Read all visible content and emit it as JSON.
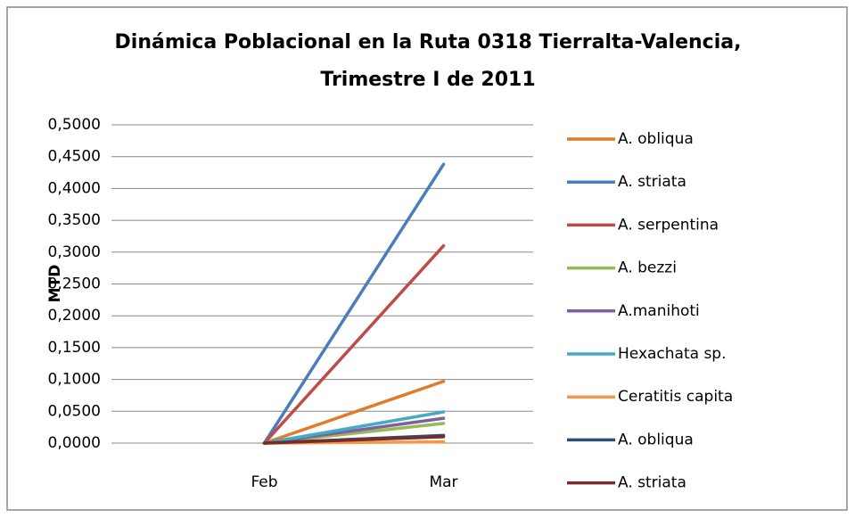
{
  "chart_data": {
    "type": "line",
    "title": [
      "Dinámica Poblacional  en la Ruta 0318 Tierralta-Valencia,",
      "Trimestre I de 2011"
    ],
    "ylabel": "MTD",
    "categories": [
      "Feb",
      "Mar"
    ],
    "ylim": [
      0,
      0.5
    ],
    "yticks": [
      {
        "value": 0,
        "label": "0,0000"
      },
      {
        "value": 0.05,
        "label": "0,0500"
      },
      {
        "value": 0.1,
        "label": "0,1000"
      },
      {
        "value": 0.15,
        "label": "0,1500"
      },
      {
        "value": 0.2,
        "label": "0,2000"
      },
      {
        "value": 0.25,
        "label": "0,2500"
      },
      {
        "value": 0.3,
        "label": "0,3000"
      },
      {
        "value": 0.35,
        "label": "0,3500"
      },
      {
        "value": 0.4,
        "label": "0,4000"
      },
      {
        "value": 0.45,
        "label": "0,4500"
      },
      {
        "value": 0.5,
        "label": "0,5000"
      }
    ],
    "grid": true,
    "legend": "right",
    "series": [
      {
        "name": "A. obliqua",
        "color": "#e07b2a",
        "values": [
          0,
          0.097
        ]
      },
      {
        "name": "A. striata",
        "color": "#4a7ebb",
        "values": [
          0,
          0.438
        ]
      },
      {
        "name": "A. serpentina",
        "color": "#be4b48",
        "values": [
          0,
          0.31
        ]
      },
      {
        "name": "A. bezzi",
        "color": "#98b954",
        "values": [
          0,
          0.031
        ]
      },
      {
        "name": "A.manihoti",
        "color": "#7d60a0",
        "values": [
          0,
          0.039
        ]
      },
      {
        "name": "Hexachata sp.",
        "color": "#46aac5",
        "values": [
          0,
          0.049
        ]
      },
      {
        "name": "Ceratitis capita",
        "color": "#f79646",
        "values": [
          0,
          0.002
        ]
      },
      {
        "name": "A. obliqua",
        "color": "#2c4d75",
        "values": [
          0,
          0.012
        ]
      },
      {
        "name": "A. striata",
        "color": "#772c2a",
        "values": [
          0,
          0.01
        ]
      }
    ]
  }
}
